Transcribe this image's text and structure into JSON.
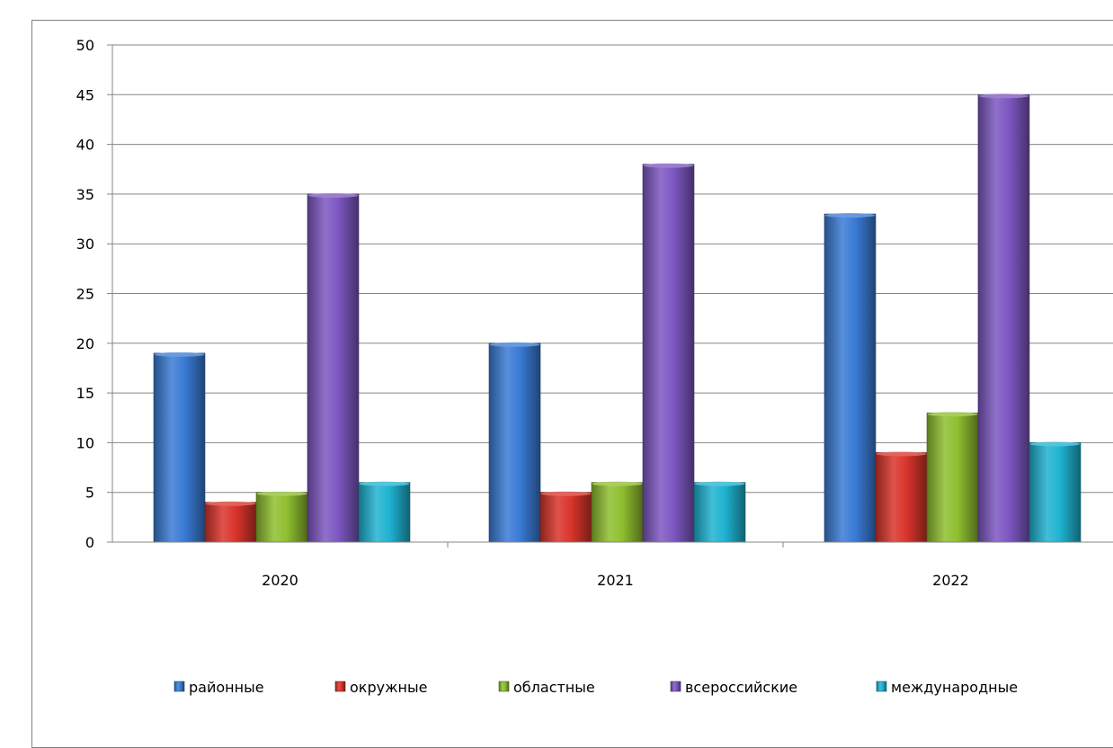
{
  "chart_data": {
    "type": "bar",
    "title": "",
    "xlabel": "",
    "ylabel": "",
    "categories": [
      "2020",
      "2021",
      "2022"
    ],
    "ylim": [
      0,
      50
    ],
    "yticks": [
      "0",
      "5",
      "10",
      "15",
      "20",
      "25",
      "30",
      "35",
      "40",
      "45",
      "50"
    ],
    "grid": true,
    "legend_position": "bottom",
    "series": [
      {
        "name": "районные",
        "values": [
          19,
          20,
          33
        ],
        "color": "#3a7bd5"
      },
      {
        "name": "окружные",
        "values": [
          4,
          5,
          9
        ],
        "color": "#d9342b"
      },
      {
        "name": "областные",
        "values": [
          5,
          6,
          13
        ],
        "color": "#8fbf2f"
      },
      {
        "name": "всероссийские",
        "values": [
          35,
          38,
          45
        ],
        "color": "#7e57c2"
      },
      {
        "name": "международные",
        "values": [
          6,
          6,
          10
        ],
        "color": "#1fb3d1"
      }
    ]
  }
}
